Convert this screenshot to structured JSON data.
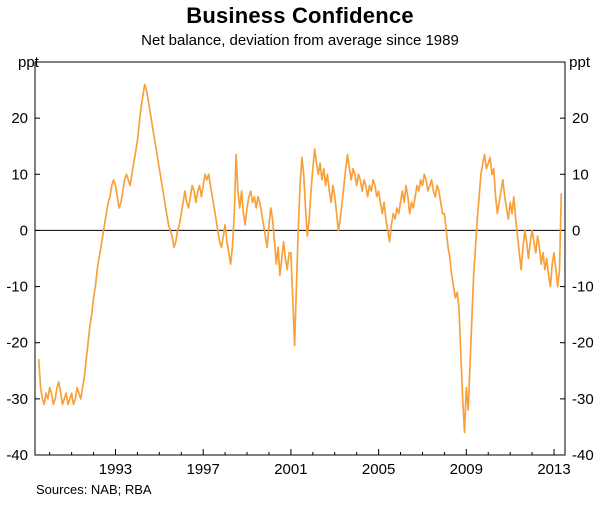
{
  "title": "Business Confidence",
  "subtitle": "Net balance, deviation from average since 1989",
  "source": "Sources: NAB; RBA",
  "axis": {
    "unit_left": "ppt",
    "unit_right": "ppt"
  },
  "chart_data": {
    "type": "line",
    "title": "Business Confidence",
    "subtitle": "Net balance, deviation from average since 1989",
    "ylabel": "ppt",
    "sources": "Sources: NAB; RBA",
    "ylim": [
      -40,
      30
    ],
    "xlim": [
      1989.33,
      2013.5
    ],
    "y_ticks": [
      20,
      10,
      0,
      -10,
      -20,
      -30,
      -40
    ],
    "x_ticks": [
      1993,
      1997,
      2001,
      2005,
      2009,
      2013
    ],
    "x_minor_ticks_start": 1990,
    "x_minor_ticks_end": 2013,
    "zero_line": true,
    "grid": false,
    "legend": "none",
    "x_start": 1989.5,
    "x_step": 0.0833333,
    "series": [
      {
        "name": "Business confidence (net balance, deviation from average since 1989)",
        "color": "#F8A13B",
        "frequency": "monthly",
        "values": [
          -23,
          -28,
          -30,
          -31,
          -29,
          -30,
          -28,
          -29,
          -31,
          -30,
          -28,
          -27,
          -29,
          -31,
          -30,
          -29,
          -31,
          -30,
          -29,
          -31,
          -30,
          -28,
          -29,
          -30,
          -28,
          -26,
          -23,
          -20,
          -17,
          -15,
          -12,
          -10,
          -7,
          -5,
          -3,
          -1,
          1,
          3,
          5,
          6,
          8,
          9,
          8,
          6,
          4,
          5,
          7,
          9,
          10,
          9,
          8,
          10,
          12,
          14,
          16,
          19,
          22,
          24,
          26,
          25,
          23,
          21,
          19,
          17,
          15,
          13,
          11,
          9,
          7,
          5,
          3,
          1,
          0,
          -1,
          -3,
          -2,
          0,
          1,
          3,
          5,
          7,
          5,
          4,
          6,
          8,
          7,
          5,
          7,
          8,
          6,
          8,
          10,
          9,
          10,
          8,
          6,
          4,
          2,
          0,
          -2,
          -3,
          -1,
          1,
          -2,
          -4,
          -6,
          -3,
          3,
          13.5,
          7,
          4,
          7,
          3,
          1,
          4,
          6,
          7,
          5,
          6,
          4,
          6,
          5,
          3,
          1,
          -1,
          -3,
          1,
          4,
          2,
          -2,
          -6,
          -3,
          -8,
          -5,
          -2,
          -5,
          -7,
          -4,
          -4,
          -12,
          -20.5,
          -10,
          0,
          8,
          13,
          10,
          4,
          -1,
          2,
          7,
          11,
          14.5,
          12,
          10,
          12,
          9,
          11,
          8,
          10,
          7,
          5,
          8,
          6,
          3,
          0,
          2,
          5,
          8,
          11,
          13.5,
          11,
          9,
          11,
          10,
          8,
          10,
          9,
          7,
          9,
          8,
          6,
          8,
          7,
          9,
          8,
          6,
          7,
          5,
          3,
          5,
          2,
          0,
          -2,
          1,
          3,
          2,
          4,
          3,
          5,
          7,
          5,
          8,
          6,
          3,
          5,
          4,
          6,
          8,
          7,
          9,
          8,
          10,
          9,
          7,
          8,
          9,
          7,
          6,
          8,
          7,
          5,
          3,
          3,
          0,
          -3,
          -5,
          -8,
          -10,
          -12,
          -11,
          -14,
          -22,
          -30,
          -36,
          -28,
          -32,
          -24,
          -16,
          -8,
          -3,
          2,
          6,
          10,
          12,
          13.5,
          11,
          12,
          13,
          10,
          11,
          6,
          3,
          5,
          7,
          9,
          6,
          4,
          2,
          5,
          3,
          6,
          2,
          -1,
          -4,
          -7,
          -3,
          0,
          -2,
          -5,
          -2,
          0,
          -2,
          -4,
          -1,
          -3,
          -6,
          -4,
          -7,
          -5,
          -8,
          -10,
          -6,
          -4,
          -7,
          -10,
          -7,
          6.5
        ]
      }
    ]
  }
}
